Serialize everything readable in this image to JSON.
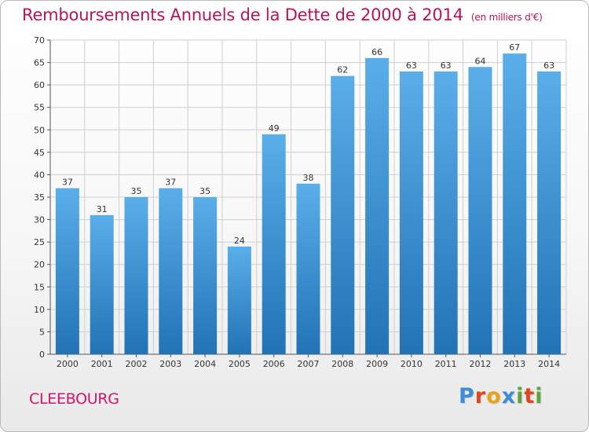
{
  "title": "Remboursements Annuels de la Dette de 2000 à 2014",
  "subtitle": "(en milliers d'€)",
  "location": "CLEEBOURG",
  "logo": {
    "text": "Proxiti",
    "letter_colors": [
      "#3d8bd9",
      "#e0451f",
      "#e8a21c",
      "#3d8bd9",
      "#5aa63c",
      "#e0451f",
      "#5aa63c"
    ]
  },
  "colors": {
    "bar_top": "#5aaee9",
    "bar_bottom": "#2173b5",
    "title": "#b5145b",
    "grid": "#cfcfcf",
    "axis": "#555555"
  },
  "chart_data": {
    "type": "bar",
    "title": "Remboursements Annuels de la Dette de 2000 à 2014",
    "subtitle": "(en milliers d'€)",
    "xlabel": "",
    "ylabel": "",
    "categories": [
      "2000",
      "2001",
      "2002",
      "2003",
      "2004",
      "2005",
      "2006",
      "2007",
      "2008",
      "2009",
      "2010",
      "2011",
      "2012",
      "2013",
      "2014"
    ],
    "values": [
      37,
      31,
      35,
      37,
      35,
      24,
      49,
      38,
      62,
      66,
      63,
      63,
      64,
      67,
      63
    ],
    "ylim": [
      0,
      70
    ],
    "yticks": [
      0,
      5,
      10,
      15,
      20,
      25,
      30,
      35,
      40,
      45,
      50,
      55,
      60,
      65,
      70
    ],
    "grid": true,
    "data_labels": true
  }
}
